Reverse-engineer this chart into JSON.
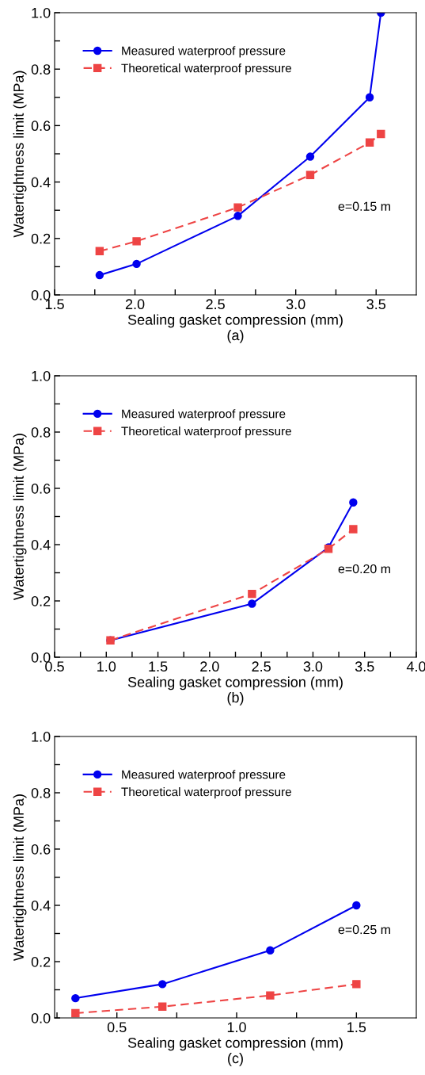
{
  "chart_data": [
    {
      "type": "line",
      "xlabel": "Sealing gasket compression (mm)",
      "ylabel": "Watertightness limit (MPa)",
      "annotations": [
        "(a)",
        "e=0.15 m"
      ],
      "xlim": [
        1.5,
        3.75
      ],
      "ylim": [
        0,
        1.0
      ],
      "xticks": [
        {
          "value": 1.5,
          "label": "1.5"
        },
        {
          "value": 1.75,
          "label": null
        },
        {
          "value": 2.0,
          "label": "2.0"
        },
        {
          "value": 2.25,
          "label": null
        },
        {
          "value": 2.5,
          "label": "2.5"
        },
        {
          "value": 2.75,
          "label": null
        },
        {
          "value": 3.0,
          "label": "3.0"
        },
        {
          "value": 3.25,
          "label": null
        },
        {
          "value": 3.5,
          "label": "3.5"
        }
      ],
      "yticks": [
        {
          "value": 0,
          "label": "0.0"
        },
        {
          "value": 0.1,
          "label": null
        },
        {
          "value": 0.2,
          "label": "0.2"
        },
        {
          "value": 0.3,
          "label": null
        },
        {
          "value": 0.4,
          "label": "0.4"
        },
        {
          "value": 0.5,
          "label": null
        },
        {
          "value": 0.6,
          "label": "0.6"
        },
        {
          "value": 0.7,
          "label": null
        },
        {
          "value": 0.8,
          "label": "0.8"
        },
        {
          "value": 0.9,
          "label": null
        },
        {
          "value": 1.0,
          "label": "1.0"
        }
      ],
      "grid": false,
      "legend": "top left",
      "series": [
        {
          "name": "Measured waterproof pressure",
          "color": "#0000ee",
          "marker": "circle",
          "line_style": "solid",
          "x": [
            1.78,
            2.01,
            2.64,
            3.09,
            3.46,
            3.53
          ],
          "values": [
            0.07,
            0.11,
            0.28,
            0.49,
            0.7,
            1.0
          ]
        },
        {
          "name": "Theoretical waterproof pressure",
          "color": "#ee4444",
          "marker": "square",
          "line_style": "dashed",
          "x": [
            1.78,
            2.01,
            2.64,
            3.09,
            3.46,
            3.53
          ],
          "values": [
            0.155,
            0.19,
            0.31,
            0.425,
            0.54,
            0.57
          ]
        }
      ]
    },
    {
      "type": "line",
      "xlabel": "Sealing gasket compression (mm)",
      "ylabel": "Watertightness limit (MPa)",
      "annotations": [
        "(b)",
        "e=0.20 m"
      ],
      "xlim": [
        0.5,
        4.0
      ],
      "ylim": [
        0,
        1.0
      ],
      "xticks": [
        {
          "value": 0.5,
          "label": "0.5"
        },
        {
          "value": 0.75,
          "label": null
        },
        {
          "value": 1.0,
          "label": "1.0"
        },
        {
          "value": 1.25,
          "label": null
        },
        {
          "value": 1.5,
          "label": "1.5"
        },
        {
          "value": 1.75,
          "label": null
        },
        {
          "value": 2.0,
          "label": "2.0"
        },
        {
          "value": 2.25,
          "label": null
        },
        {
          "value": 2.5,
          "label": "2.5"
        },
        {
          "value": 2.75,
          "label": null
        },
        {
          "value": 3.0,
          "label": "3.0"
        },
        {
          "value": 3.25,
          "label": null
        },
        {
          "value": 3.5,
          "label": "3.5"
        },
        {
          "value": 3.75,
          "label": null
        },
        {
          "value": 4.0,
          "label": "4.0"
        }
      ],
      "yticks": [
        {
          "value": 0,
          "label": "0.0"
        },
        {
          "value": 0.1,
          "label": null
        },
        {
          "value": 0.2,
          "label": "0.2"
        },
        {
          "value": 0.3,
          "label": null
        },
        {
          "value": 0.4,
          "label": "0.4"
        },
        {
          "value": 0.5,
          "label": null
        },
        {
          "value": 0.6,
          "label": "0.6"
        },
        {
          "value": 0.7,
          "label": null
        },
        {
          "value": 0.8,
          "label": "0.8"
        },
        {
          "value": 0.9,
          "label": null
        },
        {
          "value": 1.0,
          "label": "1.0"
        }
      ],
      "grid": false,
      "legend": "top left",
      "series": [
        {
          "name": "Measured waterproof pressure",
          "color": "#0000ee",
          "marker": "circle",
          "line_style": "solid",
          "x": [
            1.04,
            2.41,
            3.15,
            3.39
          ],
          "values": [
            0.06,
            0.19,
            0.39,
            0.55
          ]
        },
        {
          "name": "Theoretical waterproof pressure",
          "color": "#ee4444",
          "marker": "square",
          "line_style": "dashed",
          "x": [
            1.04,
            2.41,
            3.15,
            3.39
          ],
          "values": [
            0.06,
            0.225,
            0.385,
            0.455
          ]
        }
      ]
    },
    {
      "type": "line",
      "xlabel": "Sealing gasket compression (mm)",
      "ylabel": "Watertightness limit (MPa)",
      "annotations": [
        "(c)",
        "e=0.25 m"
      ],
      "xlim": [
        0.24,
        1.75
      ],
      "ylim": [
        0,
        1.0
      ],
      "xticks": [
        {
          "value": 0.25,
          "label": null
        },
        {
          "value": 0.5,
          "label": "0.5"
        },
        {
          "value": 0.75,
          "label": null
        },
        {
          "value": 1.0,
          "label": "1.0"
        },
        {
          "value": 1.25,
          "label": null
        },
        {
          "value": 1.5,
          "label": "1.5"
        }
      ],
      "yticks": [
        {
          "value": 0,
          "label": "0.0"
        },
        {
          "value": 0.1,
          "label": null
        },
        {
          "value": 0.2,
          "label": "0.2"
        },
        {
          "value": 0.3,
          "label": null
        },
        {
          "value": 0.4,
          "label": "0.4"
        },
        {
          "value": 0.5,
          "label": null
        },
        {
          "value": 0.6,
          "label": "0.6"
        },
        {
          "value": 0.7,
          "label": null
        },
        {
          "value": 0.8,
          "label": "0.8"
        },
        {
          "value": 0.9,
          "label": null
        },
        {
          "value": 1.0,
          "label": "1.0"
        }
      ],
      "grid": false,
      "legend": "top left",
      "series": [
        {
          "name": "Measured waterproof pressure",
          "color": "#0000ee",
          "marker": "circle",
          "line_style": "solid",
          "x": [
            0.327,
            0.69,
            1.14,
            1.5
          ],
          "values": [
            0.07,
            0.12,
            0.24,
            0.4
          ]
        },
        {
          "name": "Theoretical waterproof pressure",
          "color": "#ee4444",
          "marker": "square",
          "line_style": "dashed",
          "x": [
            0.327,
            0.69,
            1.14,
            1.5
          ],
          "values": [
            0.017,
            0.04,
            0.08,
            0.12
          ]
        }
      ]
    }
  ]
}
